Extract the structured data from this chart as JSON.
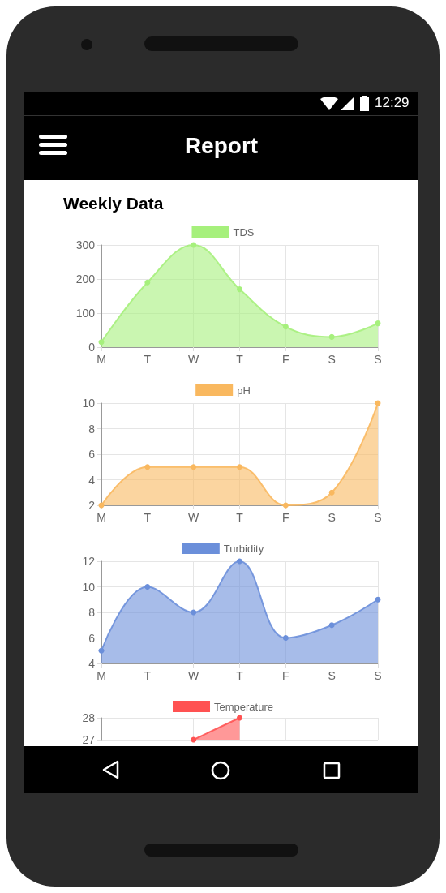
{
  "chart_data": [
    {
      "type": "area",
      "title": "Weekly Data",
      "annotations": [
        "Report",
        "12:29"
      ],
      "categories": [
        "M",
        "T",
        "W",
        "T",
        "F",
        "S",
        "S"
      ],
      "series": [
        {
          "name": "TDS",
          "color": "#a6f07c",
          "values": [
            15,
            190,
            300,
            170,
            60,
            30,
            70
          ]
        }
      ],
      "ylim": [
        0,
        300
      ],
      "yticks": [
        0,
        100,
        200,
        300
      ],
      "grid": true,
      "legend": "top",
      "marker": "circle"
    },
    {
      "type": "area",
      "categories": [
        "M",
        "T",
        "W",
        "T",
        "F",
        "S",
        "S"
      ],
      "series": [
        {
          "name": "pH",
          "color": "#f9b85f",
          "values": [
            2,
            5,
            5,
            5,
            2,
            3,
            10
          ]
        }
      ],
      "ylim": [
        2,
        10
      ],
      "yticks": [
        2,
        4,
        6,
        8,
        10
      ],
      "grid": true,
      "legend": "top",
      "marker": "circle"
    },
    {
      "type": "area",
      "categories": [
        "M",
        "T",
        "W",
        "T",
        "F",
        "S",
        "S"
      ],
      "series": [
        {
          "name": "Turbidity",
          "color": "#6b8fda",
          "values": [
            5,
            10,
            8,
            12,
            6,
            7,
            9
          ]
        }
      ],
      "ylim": [
        4,
        12
      ],
      "yticks": [
        4,
        6,
        8,
        10,
        12
      ],
      "grid": true,
      "legend": "top",
      "marker": "circle"
    },
    {
      "type": "area",
      "categories": [
        null,
        null,
        null,
        null,
        null,
        null,
        null
      ],
      "tick_labels": "y",
      "series": [
        {
          "name": "Temperature",
          "color": "#ff5252",
          "values": [
            null,
            null,
            27,
            28,
            null,
            null,
            null
          ]
        }
      ],
      "ylim": [
        27,
        28
      ],
      "yticks": [
        27,
        28
      ],
      "grid": true,
      "legend": "top",
      "marker": "circle"
    }
  ]
}
